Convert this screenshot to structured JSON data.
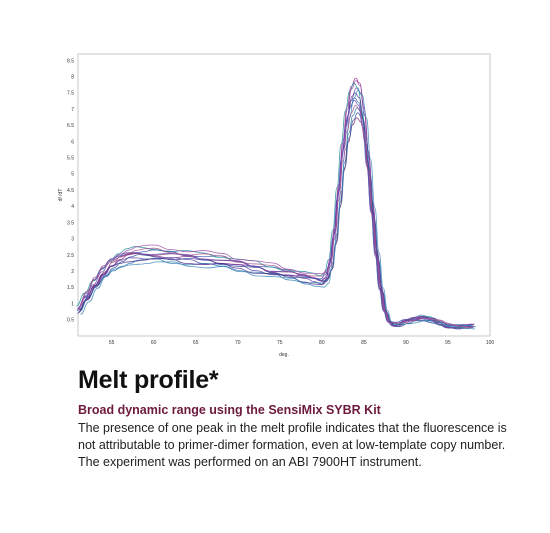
{
  "heading": "Melt profile*",
  "subheading": "Broad dynamic range using the SensiMix SYBR Kit",
  "description": "The presence of one peak in the melt profile indicates that the fluorescence is not attributable to primer-dimer formation, even at low-template copy number. The experiment was performed on an ABI 7900HT instrument.",
  "colors": {
    "subheading": "#6d1a3f",
    "series": [
      "#8e2a8a",
      "#5b3aa0",
      "#3c5ab0",
      "#2a78a8",
      "#1f8f95",
      "#7b2f6e",
      "#4a2a8a",
      "#9a4aa6",
      "#2f4f9f",
      "#6a4cb8",
      "#3a86b8",
      "#a05090"
    ]
  },
  "chart_data": {
    "type": "line",
    "title": "",
    "xlabel": "deg.",
    "ylabel": "df /dT",
    "xlim": [
      51,
      100
    ],
    "ylim": [
      0,
      8.7
    ],
    "x_ticks": [
      55,
      60,
      65,
      70,
      75,
      80,
      85,
      90,
      95,
      100
    ],
    "y_ticks": [
      0.5,
      1,
      1.5,
      2,
      2.5,
      3,
      3.5,
      4,
      4.5,
      5,
      5.5,
      6,
      6.5,
      7,
      7.5,
      8,
      8.5
    ],
    "grid": false,
    "legend": false,
    "base_profile": {
      "x": [
        51,
        52,
        53,
        54,
        55,
        56,
        57,
        58,
        59,
        60,
        62,
        64,
        66,
        68,
        70,
        72,
        74,
        76,
        78,
        79,
        80,
        80.5,
        81,
        81.5,
        82,
        82.5,
        83,
        83.5,
        84,
        84.5,
        85,
        85.5,
        86,
        86.5,
        87,
        87.5,
        88,
        88.5,
        89,
        90,
        91,
        92,
        93,
        94,
        95,
        96,
        97,
        98
      ],
      "y": [
        0.8,
        1.2,
        1.6,
        1.95,
        2.2,
        2.35,
        2.45,
        2.5,
        2.5,
        2.5,
        2.45,
        2.4,
        2.35,
        2.3,
        2.2,
        2.1,
        2.0,
        1.9,
        1.8,
        1.75,
        1.7,
        1.8,
        2.3,
        3.2,
        4.5,
        5.8,
        6.8,
        7.4,
        7.65,
        7.5,
        6.8,
        5.5,
        4.0,
        2.6,
        1.5,
        0.8,
        0.45,
        0.35,
        0.35,
        0.45,
        0.5,
        0.55,
        0.5,
        0.4,
        0.3,
        0.28,
        0.3,
        0.3
      ]
    },
    "series": [
      {
        "y_scale": 1.0,
        "peak_scale": 1.04,
        "x_shift": 0.0
      },
      {
        "y_scale": 0.97,
        "peak_scale": 1.0,
        "x_shift": 0.1
      },
      {
        "y_scale": 1.05,
        "peak_scale": 0.96,
        "x_shift": -0.1
      },
      {
        "y_scale": 0.93,
        "peak_scale": 0.92,
        "x_shift": 0.2
      },
      {
        "y_scale": 1.08,
        "peak_scale": 1.02,
        "x_shift": -0.2
      },
      {
        "y_scale": 1.02,
        "peak_scale": 0.88,
        "x_shift": 0.15
      },
      {
        "y_scale": 0.95,
        "peak_scale": 0.98,
        "x_shift": -0.05
      },
      {
        "y_scale": 1.1,
        "peak_scale": 1.03,
        "x_shift": 0.05
      },
      {
        "y_scale": 0.98,
        "peak_scale": 0.9,
        "x_shift": 0.25
      },
      {
        "y_scale": 1.03,
        "peak_scale": 0.95,
        "x_shift": -0.15
      },
      {
        "y_scale": 0.91,
        "peak_scale": 0.99,
        "x_shift": 0.3
      },
      {
        "y_scale": 1.06,
        "peak_scale": 0.93,
        "x_shift": 0.0
      }
    ]
  }
}
